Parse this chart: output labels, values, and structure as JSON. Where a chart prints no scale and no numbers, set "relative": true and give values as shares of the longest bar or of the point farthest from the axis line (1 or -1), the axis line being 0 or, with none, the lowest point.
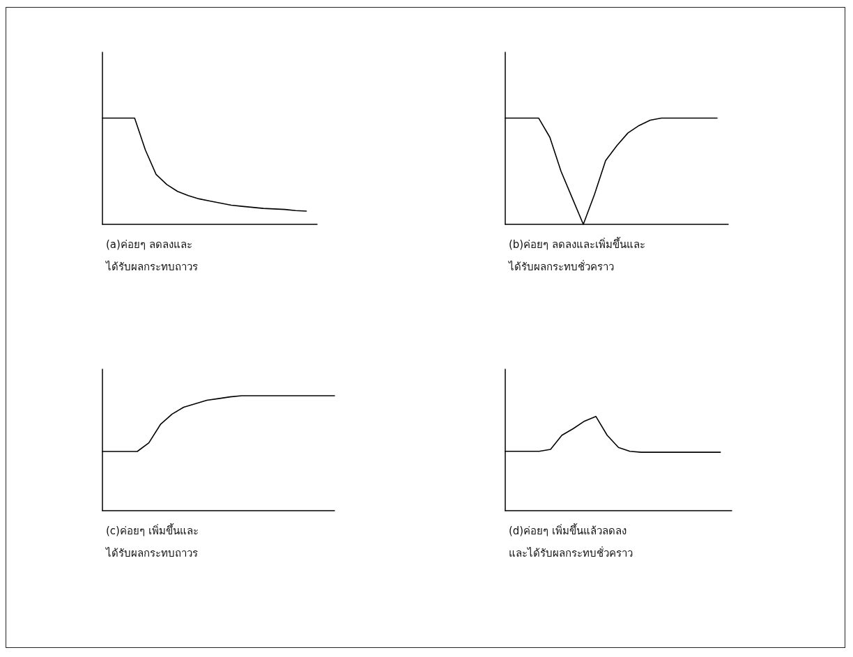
{
  "chart_data": [
    {
      "type": "line",
      "relative": true,
      "xlabel": "(a)ค่อยๆ ลดลงและ\nได้รับผลกระทบถาวร",
      "categories": [
        null,
        null,
        null,
        null,
        null,
        null,
        null,
        null,
        null,
        null,
        null,
        null,
        null,
        null,
        null,
        null,
        null,
        null,
        null,
        null,
        null
      ],
      "series": [
        {
          "color": "#000000",
          "values": [
            1,
            1,
            1,
            1,
            0.7,
            0.47,
            0.375,
            0.31,
            0.27,
            0.24,
            0.22,
            0.2,
            0.18,
            0.17,
            0.16,
            0.15,
            0.145,
            0.14,
            0.13,
            0.125,
            null
          ]
        }
      ],
      "marker": "none",
      "grid": false
    },
    {
      "type": "line",
      "relative": true,
      "xlabel": "(b)ค่อยๆ ลดลงและเพิ่มขึ้นและ\nได้รับผลกระทบชั่วคราว",
      "categories": [
        null,
        null,
        null,
        null,
        null,
        null,
        null,
        null,
        null,
        null,
        null,
        null,
        null,
        null,
        null,
        null,
        null,
        null,
        null,
        null,
        null
      ],
      "series": [
        {
          "color": "#000000",
          "values": [
            1,
            1,
            1,
            1,
            0.82,
            0.5,
            0.25,
            0,
            0.28,
            0.6,
            0.74,
            0.86,
            0.93,
            0.98,
            1,
            1,
            1,
            1,
            1,
            1,
            null
          ]
        }
      ],
      "marker": "none",
      "grid": false
    },
    {
      "type": "line",
      "relative": true,
      "xlabel": "(c)ค่อยๆ เพิ่มขึ้นและ\nได้รับผลกระทบถาวร",
      "categories": [
        null,
        null,
        null,
        null,
        null,
        null,
        null,
        null,
        null,
        null,
        null,
        null,
        null,
        null,
        null,
        null,
        null,
        null,
        null,
        null,
        null
      ],
      "series": [
        {
          "color": "#000000",
          "values": [
            0.515,
            0.515,
            0.515,
            0.515,
            0.59,
            0.75,
            0.84,
            0.9,
            0.93,
            0.96,
            0.975,
            0.99,
            1,
            1,
            1,
            1,
            1,
            1,
            1,
            1,
            1
          ]
        }
      ],
      "marker": "none",
      "grid": false
    },
    {
      "type": "line",
      "relative": true,
      "xlabel": "(d)ค่อยๆ เพิ่มขึ้นแล้วลดลง\nและได้รับผลกระทบชั่วคราว",
      "categories": [
        null,
        null,
        null,
        null,
        null,
        null,
        null,
        null,
        null,
        null,
        null,
        null,
        null,
        null,
        null,
        null,
        null,
        null,
        null,
        null,
        null
      ],
      "series": [
        {
          "color": "#000000",
          "values": [
            0.63,
            0.63,
            0.63,
            0.63,
            0.65,
            0.8,
            0.87,
            0.95,
            1,
            0.8,
            0.67,
            0.63,
            0.62,
            0.62,
            0.62,
            0.62,
            0.62,
            0.62,
            0.62,
            0.62,
            null
          ]
        }
      ],
      "marker": "none",
      "grid": false
    }
  ]
}
